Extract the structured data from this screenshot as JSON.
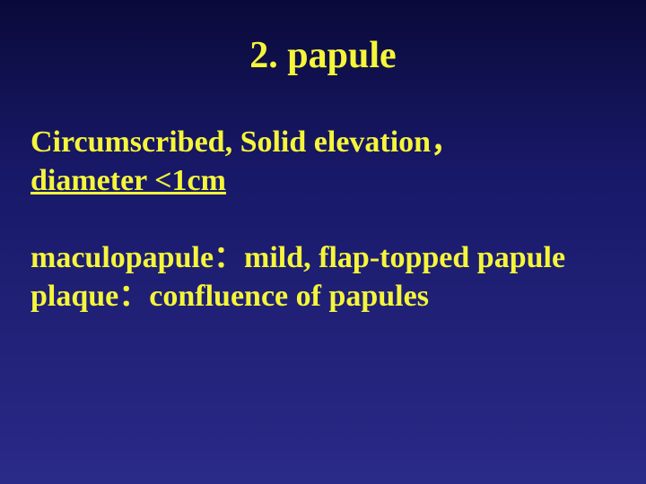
{
  "slide": {
    "background_gradient": [
      "#0a0a3a",
      "#181868",
      "#2a2a88"
    ],
    "text_color": "#f5f53a",
    "font_family": "Times New Roman",
    "title": {
      "text": "2. papule",
      "font_size_pt": 32,
      "font_weight": "bold",
      "align": "center"
    },
    "body": {
      "font_size_pt": 26,
      "font_weight": "bold",
      "blocks": [
        {
          "lines": [
            {
              "text": "Circumscribed, Solid elevation，",
              "underline": false
            },
            {
              "text": "diameter <1cm",
              "underline": true
            }
          ]
        },
        {
          "lines": [
            {
              "text": "maculopapule：mild, flap-topped papule",
              "underline": false
            },
            {
              "text": "plaque：confluence of papules",
              "underline": false
            }
          ]
        }
      ]
    }
  }
}
